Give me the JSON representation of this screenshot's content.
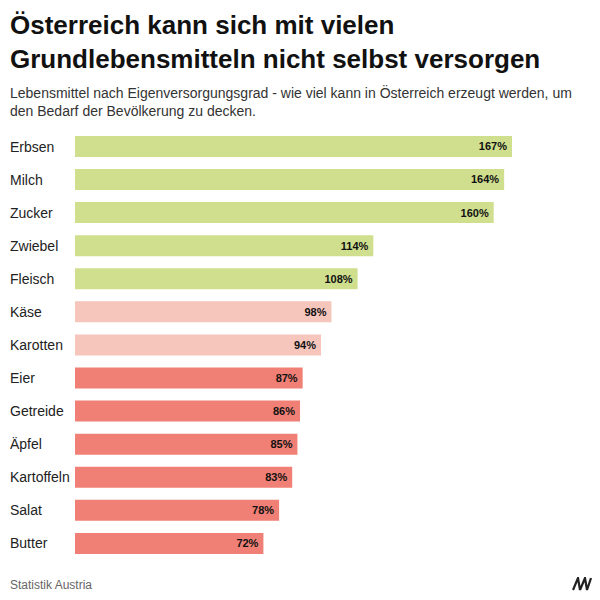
{
  "chart_data": {
    "type": "bar",
    "orientation": "horizontal",
    "title": "Österreich kann sich mit vielen Grundlebensmitteln nicht selbst versorgen",
    "subtitle": "Lebensmittel nach Eigenversorgungsgrad - wie viel kann in Österreich erzeugt werden, um den Bedarf der Bevölkerung zu decken.",
    "source": "Statistik Austria",
    "categories": [
      "Erbsen",
      "Milch",
      "Zucker",
      "Zwiebel",
      "Fleisch",
      "Käse",
      "Karotten",
      "Eier",
      "Getreide",
      "Äpfel",
      "Kartoffeln",
      "Salat",
      "Butter"
    ],
    "values": [
      167,
      164,
      160,
      114,
      108,
      98,
      94,
      87,
      86,
      85,
      83,
      78,
      72
    ],
    "value_labels": [
      "167%",
      "164%",
      "160%",
      "114%",
      "108%",
      "98%",
      "94%",
      "87%",
      "86%",
      "85%",
      "83%",
      "78%",
      "72%"
    ],
    "colors": [
      "#cfdf8e",
      "#cfdf8e",
      "#cfdf8e",
      "#cfdf8e",
      "#cfdf8e",
      "#f6c5bc",
      "#f6c5bc",
      "#f08075",
      "#f08075",
      "#f08075",
      "#f08075",
      "#f08075",
      "#f08075"
    ],
    "data_labels": true,
    "tick_labels": "y",
    "grid": false
  }
}
